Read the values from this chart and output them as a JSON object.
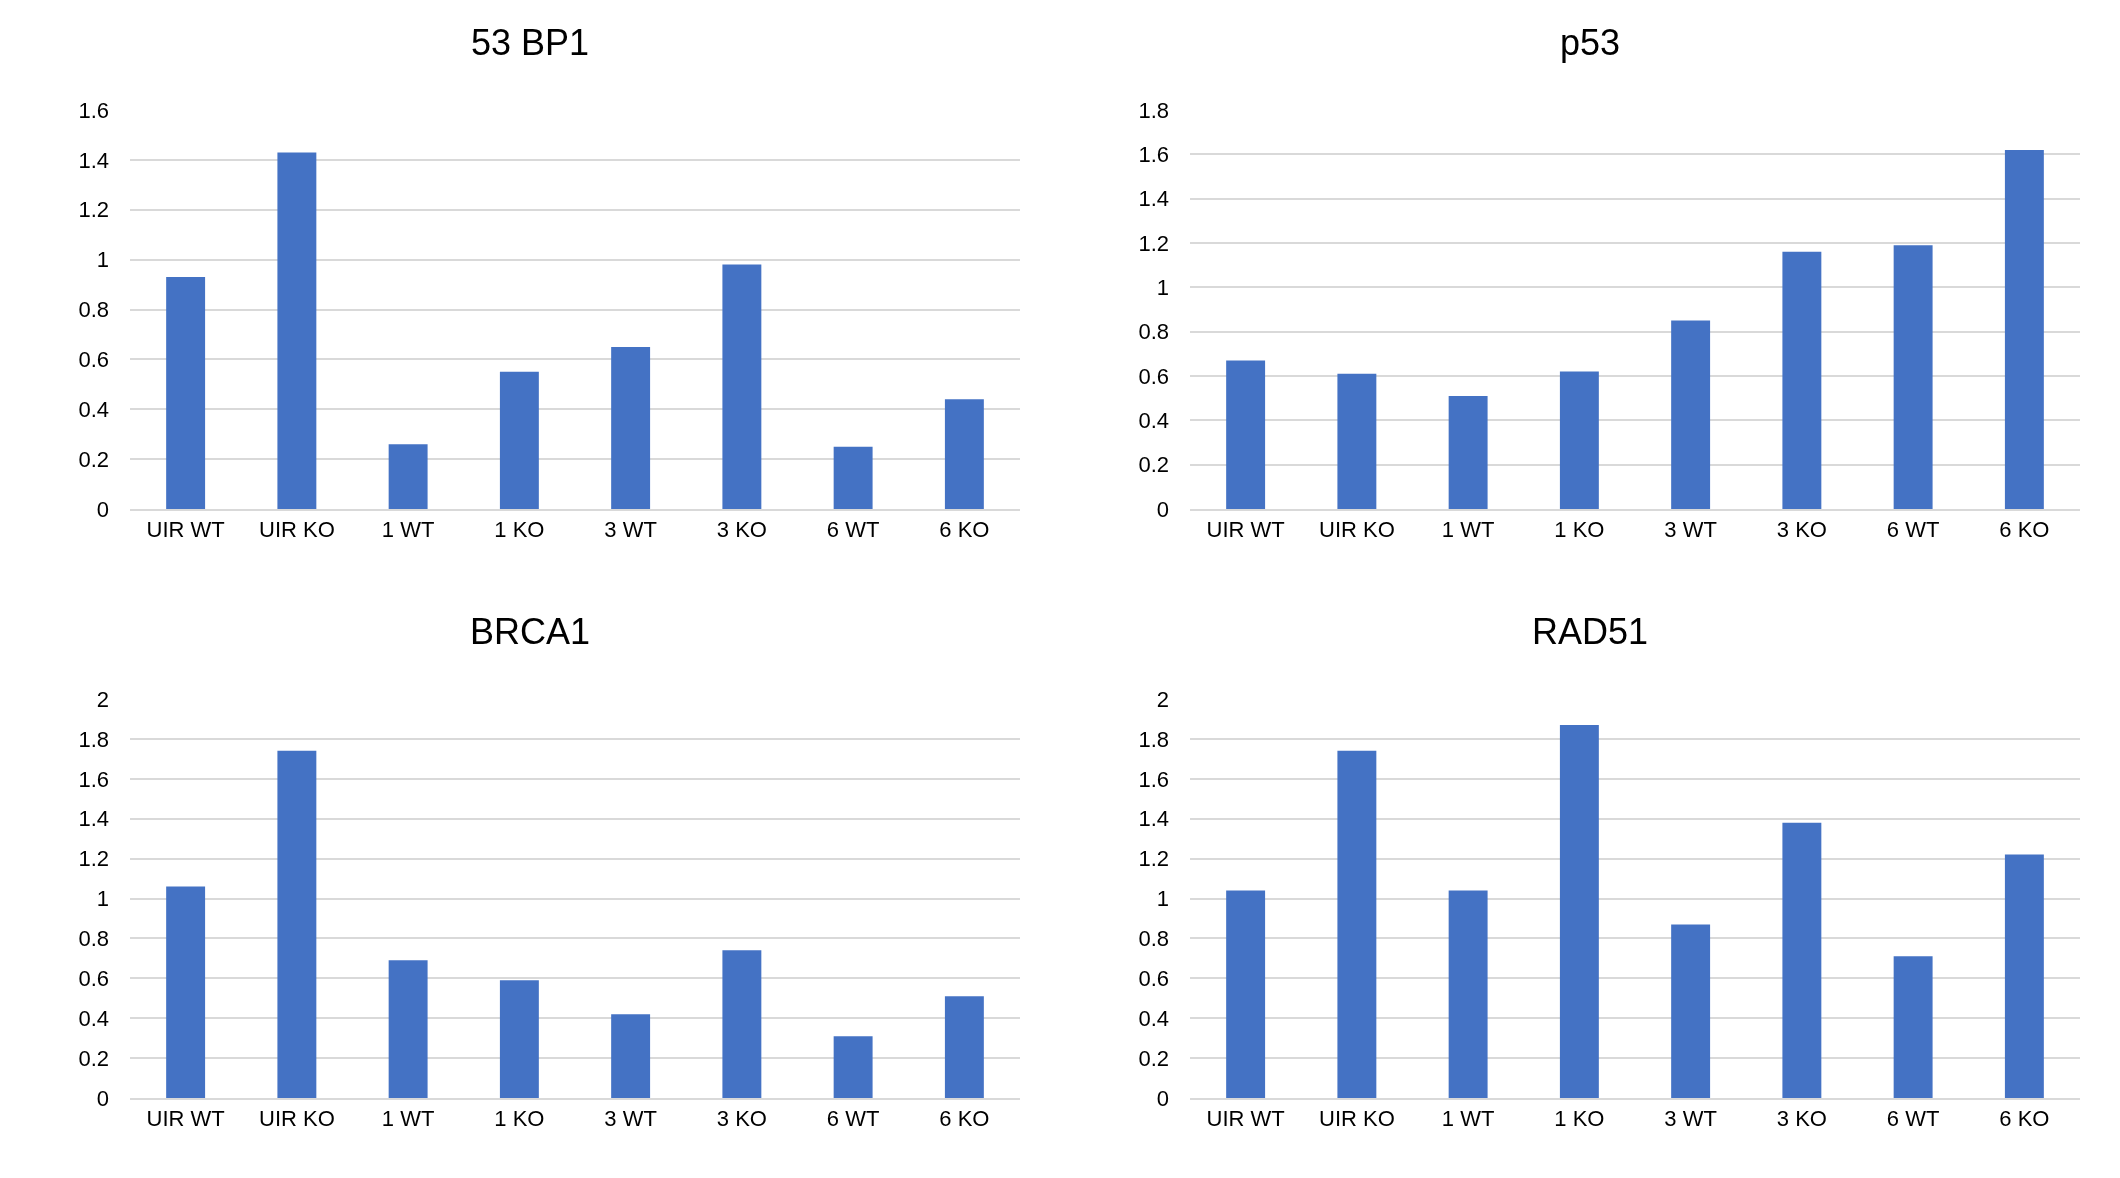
{
  "chart_data": [
    {
      "type": "bar",
      "title": "53 BP1",
      "categories": [
        "UIR WT",
        "UIR KO",
        "1 WT",
        "1 KO",
        "3 WT",
        "3 KO",
        "6 WT",
        "6 KO"
      ],
      "values": [
        0.93,
        1.43,
        0.26,
        0.55,
        0.65,
        0.98,
        0.25,
        0.44
      ],
      "color": "#4472c4",
      "ylim": [
        0,
        1.6
      ],
      "yticks": [
        0,
        0.2,
        0.4,
        0.6,
        0.8,
        1,
        1.2,
        1.4,
        1.6
      ],
      "grid": "y"
    },
    {
      "type": "bar",
      "title": "p53",
      "categories": [
        "UIR WT",
        "UIR KO",
        "1 WT",
        "1 KO",
        "3 WT",
        "3 KO",
        "6 WT",
        "6 KO"
      ],
      "values": [
        0.67,
        0.61,
        0.51,
        0.62,
        0.85,
        1.16,
        1.19,
        1.62
      ],
      "color": "#4472c4",
      "ylim": [
        0,
        1.8
      ],
      "yticks": [
        0,
        0.2,
        0.4,
        0.6,
        0.8,
        1,
        1.2,
        1.4,
        1.6,
        1.8
      ],
      "grid": "y"
    },
    {
      "type": "bar",
      "title": "BRCA1",
      "categories": [
        "UIR WT",
        "UIR KO",
        "1 WT",
        "1 KO",
        "3 WT",
        "3 KO",
        "6 WT",
        "6 KO"
      ],
      "values": [
        1.06,
        1.74,
        0.69,
        0.59,
        0.42,
        0.74,
        0.31,
        0.51
      ],
      "color": "#4472c4",
      "ylim": [
        0,
        2
      ],
      "yticks": [
        0,
        0.2,
        0.4,
        0.6,
        0.8,
        1,
        1.2,
        1.4,
        1.6,
        1.8,
        2
      ],
      "grid": "y"
    },
    {
      "type": "bar",
      "title": "RAD51",
      "categories": [
        "UIR WT",
        "UIR KO",
        "1 WT",
        "1 KO",
        "3 WT",
        "3 KO",
        "6 WT",
        "6 KO"
      ],
      "values": [
        1.04,
        1.74,
        1.04,
        1.87,
        0.87,
        1.38,
        0.71,
        1.22
      ],
      "color": "#4472c4",
      "ylim": [
        0,
        2
      ],
      "yticks": [
        0,
        0.2,
        0.4,
        0.6,
        0.8,
        1,
        1.2,
        1.4,
        1.6,
        1.8,
        2
      ],
      "grid": "y"
    }
  ]
}
